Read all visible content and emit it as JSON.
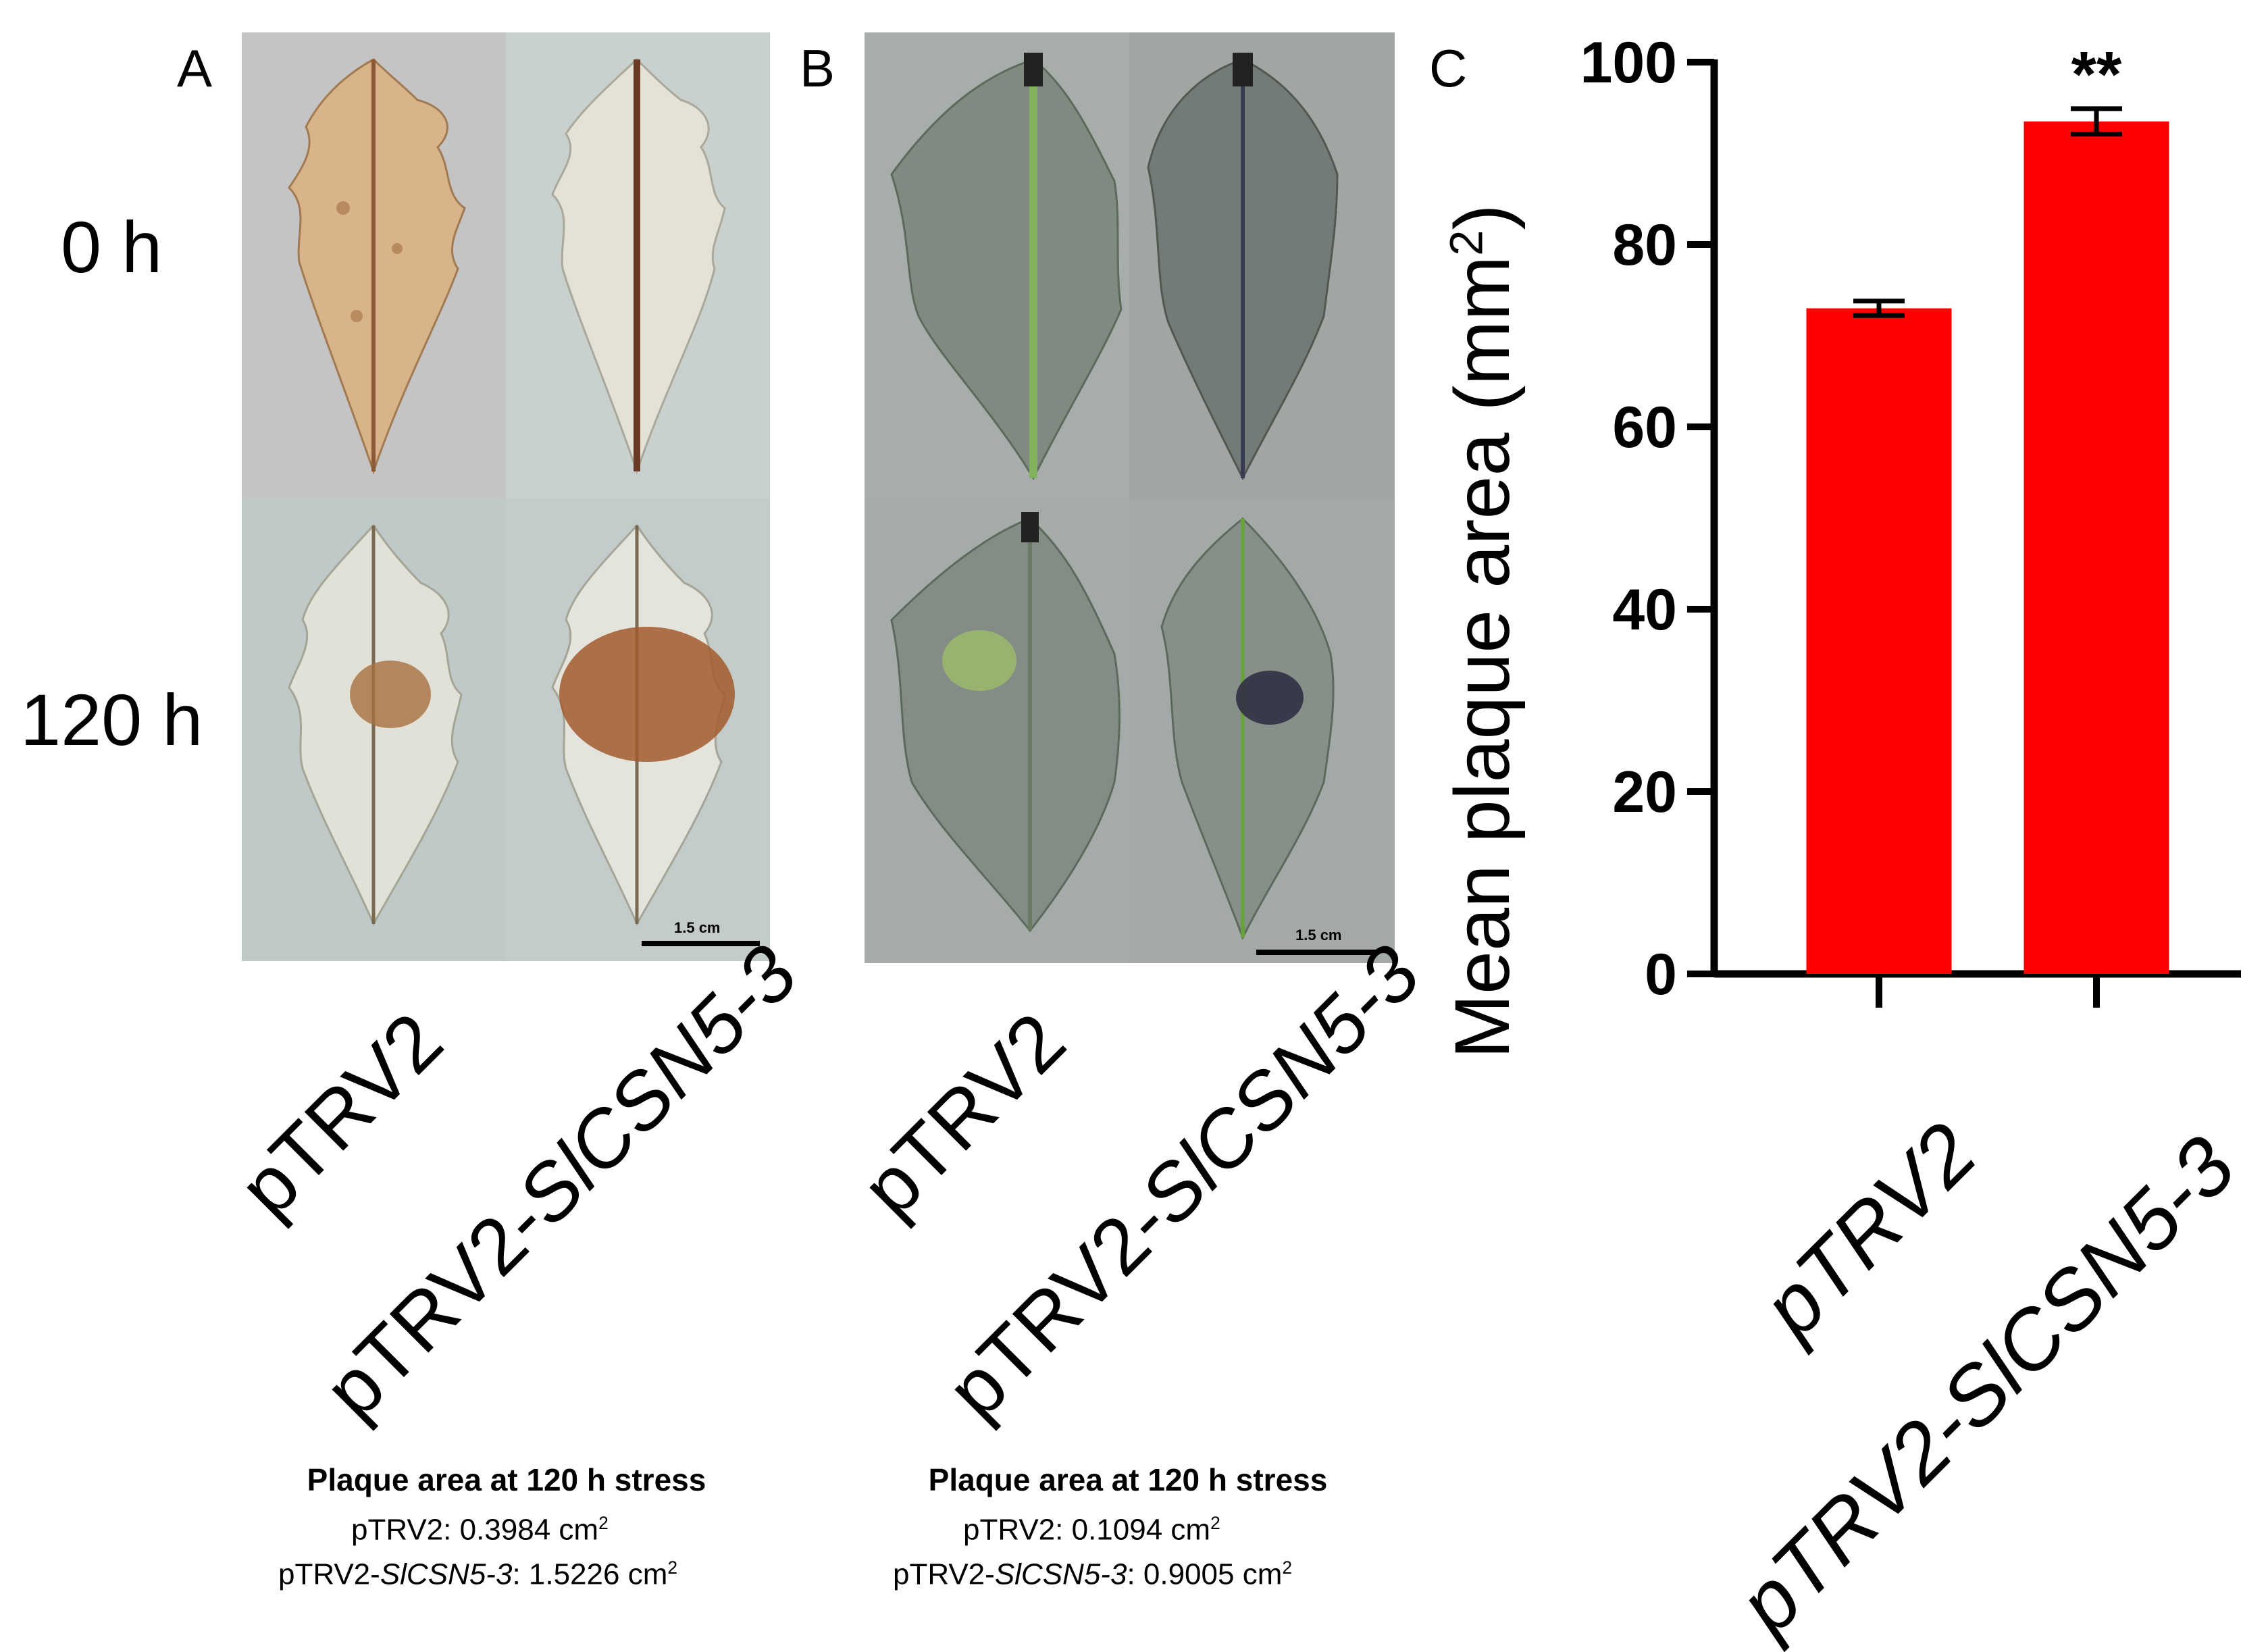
{
  "panelA": {
    "letter": "A",
    "row_labels": [
      "0 h",
      "120 h"
    ],
    "columns": [
      "pTRV2",
      "pTRV2-"
    ],
    "column2_italic": "SlCSN5-3",
    "scale_bar": "1.5 cm",
    "caption": {
      "title": "Plaque area at 120 h stress",
      "line1_name": "pTRV2",
      "line1_value": ": 0.3984 cm",
      "line2_prefix": "pTRV2-",
      "line2_italic": "SlCSN5-3",
      "line2_value": ": 1.5226 cm",
      "unit_sup": "2"
    }
  },
  "panelB": {
    "letter": "B",
    "columns": [
      "pTRV2",
      "pTRV2-"
    ],
    "column2_italic": "SlCSN5-3",
    "scale_bar": "1.5 cm",
    "caption": {
      "title": "Plaque area at 120 h stress",
      "line1_name": "pTRV2",
      "line1_value": ": 0.1094 cm",
      "line2_prefix": "pTRV2-",
      "line2_italic": "SlCSN5-3",
      "line2_value": ": 0.9005 cm",
      "unit_sup": "2"
    }
  },
  "chart_data": {
    "type": "bar",
    "panel_letter": "C",
    "categories": [
      "pTRV2",
      "pTRV2-SlCSN5-3"
    ],
    "values": [
      73.0,
      93.5
    ],
    "errors": [
      0.8,
      1.4
    ],
    "significance": [
      "",
      "**"
    ],
    "ylabel": "Mean plaque area (mm",
    "ylabel_sup": "2",
    "ylabel_end": ")",
    "ylim": [
      0,
      100
    ],
    "yticks": [
      0,
      20,
      40,
      60,
      80,
      100
    ],
    "bar_color": "#ff0000"
  },
  "colors": {
    "bar": "#ff0000",
    "leaf_a_bg": "#b9bcbd",
    "leaf_b_bg": "#9ea6a4",
    "stain_brown": "#8a4a24",
    "stain_blue": "#2a2a5a"
  }
}
